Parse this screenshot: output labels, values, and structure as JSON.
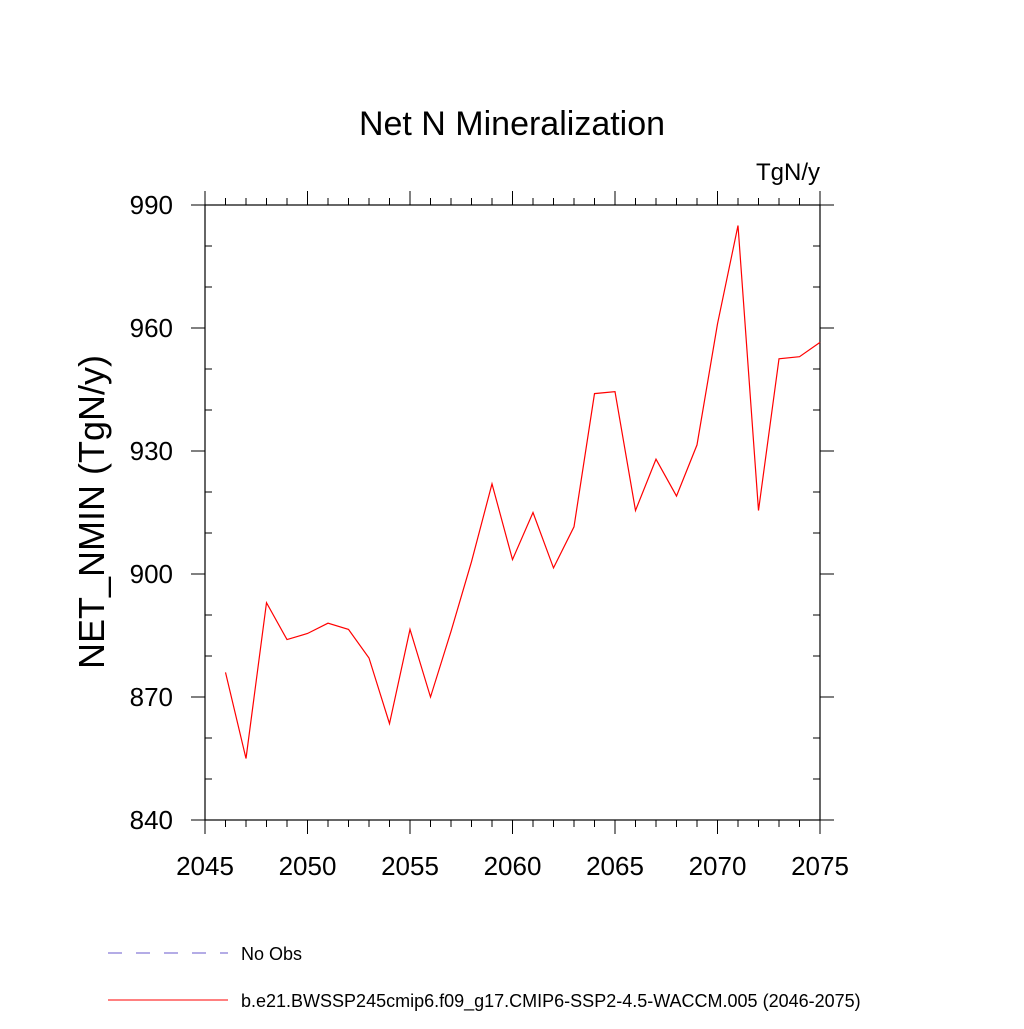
{
  "chart_data": {
    "type": "line",
    "title": "Net N Mineralization",
    "units_label": "TgN/y",
    "xlabel": "",
    "ylabel": "NET_NMIN  (TgN/y)",
    "xlim": [
      2045,
      2075
    ],
    "ylim": [
      840,
      990
    ],
    "x_ticks": [
      2045,
      2050,
      2055,
      2060,
      2065,
      2070,
      2075
    ],
    "y_ticks": [
      840,
      870,
      900,
      930,
      960,
      990
    ],
    "x_minor_step": 1,
    "y_minor_step": 10,
    "grid": false,
    "legend_position": "bottom",
    "series": [
      {
        "name": "b.e21.BWSSP245cmip6.f09_g17.CMIP6-SSP2-4.5-WACCM.005 (2046-2075)",
        "color": "#ff0000",
        "style": "solid",
        "x": [
          2046,
          2047,
          2048,
          2049,
          2050,
          2051,
          2052,
          2053,
          2054,
          2055,
          2056,
          2057,
          2058,
          2059,
          2060,
          2061,
          2062,
          2063,
          2064,
          2065,
          2066,
          2067,
          2068,
          2069,
          2070,
          2071,
          2072,
          2073,
          2074,
          2075
        ],
        "values": [
          876,
          855,
          893,
          884,
          885.5,
          888,
          886.5,
          879.5,
          863.5,
          886.5,
          870,
          886,
          903,
          922,
          903.5,
          915,
          901.5,
          911.5,
          944,
          944.5,
          915.5,
          928,
          919,
          931.5,
          961,
          985,
          915.5,
          952.5,
          953,
          956.5
        ]
      }
    ],
    "legend": [
      {
        "label": "No Obs",
        "color": "#6a5acd",
        "style": "dashed"
      },
      {
        "label": "b.e21.BWSSP245cmip6.f09_g17.CMIP6-SSP2-4.5-WACCM.005 (2046-2075)",
        "color": "#ff0000",
        "style": "solid"
      }
    ]
  }
}
